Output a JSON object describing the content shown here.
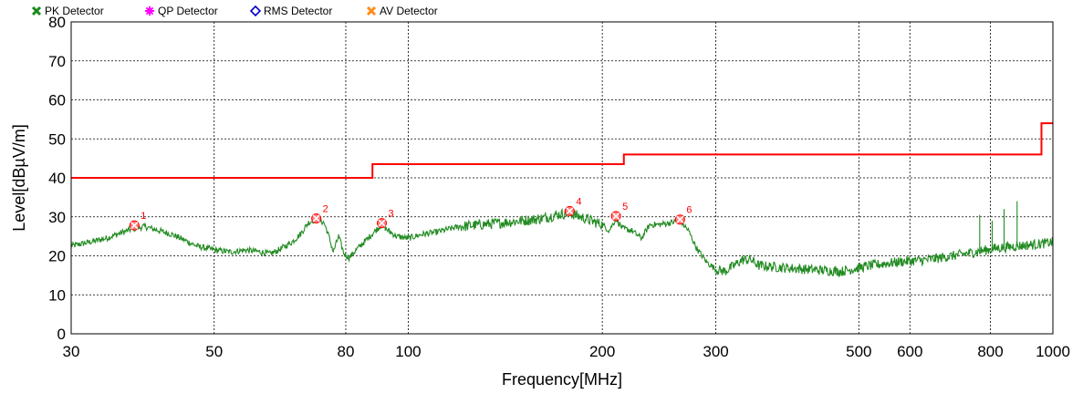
{
  "chart_data": {
    "type": "line",
    "xlabel": "Frequency[MHz]",
    "ylabel": "Level[dBµV/m]",
    "x_scale": "log",
    "xlim": [
      30,
      1000
    ],
    "ylim": [
      0,
      80
    ],
    "grid": true,
    "legend_position": "top-left",
    "x_ticks": [
      {
        "value": 30,
        "label": "30"
      },
      {
        "value": 50,
        "label": "50"
      },
      {
        "value": 80,
        "label": "80"
      },
      {
        "value": 100,
        "label": "100"
      },
      {
        "value": 200,
        "label": "200"
      },
      {
        "value": 300,
        "label": "300"
      },
      {
        "value": 500,
        "label": "500"
      },
      {
        "value": 600,
        "label": "600"
      },
      {
        "value": 800,
        "label": "800"
      },
      {
        "value": 1000,
        "label": "1000"
      }
    ],
    "y_ticks": [
      0,
      10,
      20,
      30,
      40,
      50,
      60,
      70,
      80
    ],
    "legend": [
      {
        "name": "PK Detector",
        "color": "#1a8a1a",
        "marker": "x-icon"
      },
      {
        "name": "QP Detector",
        "color": "#ff00ff",
        "marker": "star-icon"
      },
      {
        "name": "RMS Detector",
        "color": "#0000cc",
        "marker": "diamond-icon"
      },
      {
        "name": "AV Detector",
        "color": "#ff8c1a",
        "marker": "x-icon"
      }
    ],
    "limit_line": {
      "color": "#ff0000",
      "points": [
        [
          30,
          40
        ],
        [
          88,
          40
        ],
        [
          88,
          43.5
        ],
        [
          216,
          43.5
        ],
        [
          216,
          46
        ],
        [
          960,
          46
        ],
        [
          960,
          54
        ],
        [
          1000,
          54
        ]
      ]
    },
    "pk_trace": {
      "color": "#228b22",
      "points": [
        [
          30,
          22.5
        ],
        [
          32,
          23.5
        ],
        [
          34,
          24.5
        ],
        [
          36,
          26
        ],
        [
          37.5,
          27
        ],
        [
          39,
          27.5
        ],
        [
          41,
          26.5
        ],
        [
          43,
          25.5
        ],
        [
          45,
          24
        ],
        [
          47,
          22.5
        ],
        [
          50,
          21.5
        ],
        [
          53,
          21
        ],
        [
          56,
          21.5
        ],
        [
          59,
          21
        ],
        [
          61,
          20.5
        ],
        [
          63,
          21.5
        ],
        [
          66,
          23.5
        ],
        [
          68,
          25.5
        ],
        [
          70,
          28.5
        ],
        [
          72,
          29.5
        ],
        [
          74,
          28.5
        ],
        [
          75,
          26
        ],
        [
          76.5,
          21
        ],
        [
          78,
          25
        ],
        [
          79.5,
          20.5
        ],
        [
          81,
          19.5
        ],
        [
          83,
          21.5
        ],
        [
          86,
          24
        ],
        [
          89,
          26.5
        ],
        [
          91,
          28
        ],
        [
          93,
          26.5
        ],
        [
          96,
          25
        ],
        [
          100,
          24.5
        ],
        [
          105,
          25.5
        ],
        [
          110,
          26
        ],
        [
          120,
          27.5
        ],
        [
          130,
          28
        ],
        [
          140,
          28.5
        ],
        [
          150,
          29
        ],
        [
          160,
          29.5
        ],
        [
          170,
          30.5
        ],
        [
          178,
          31
        ],
        [
          185,
          30
        ],
        [
          192,
          29
        ],
        [
          200,
          28
        ],
        [
          205,
          26.5
        ],
        [
          210,
          29.5
        ],
        [
          215,
          27
        ],
        [
          222,
          26.5
        ],
        [
          230,
          24.5
        ],
        [
          237,
          28
        ],
        [
          245,
          28
        ],
        [
          255,
          28.5
        ],
        [
          264,
          29
        ],
        [
          272,
          26.5
        ],
        [
          280,
          22
        ],
        [
          290,
          18.5
        ],
        [
          300,
          16.5
        ],
        [
          310,
          16
        ],
        [
          320,
          17.5
        ],
        [
          330,
          19
        ],
        [
          340,
          19
        ],
        [
          350,
          17.5
        ],
        [
          380,
          17
        ],
        [
          420,
          16.5
        ],
        [
          470,
          16
        ],
        [
          520,
          17.5
        ],
        [
          580,
          18.5
        ],
        [
          640,
          19
        ],
        [
          700,
          20
        ],
        [
          760,
          21
        ],
        [
          820,
          22
        ],
        [
          880,
          22.5
        ],
        [
          950,
          23
        ],
        [
          1000,
          23.5
        ]
      ],
      "spikes": [
        [
          770,
          30.5
        ],
        [
          805,
          29
        ],
        [
          840,
          32
        ],
        [
          880,
          34
        ]
      ]
    },
    "markers": [
      {
        "label": "1",
        "x": 37.6,
        "y": 27.8
      },
      {
        "label": "2",
        "x": 72.0,
        "y": 29.6
      },
      {
        "label": "3",
        "x": 91.0,
        "y": 28.4
      },
      {
        "label": "4",
        "x": 178.0,
        "y": 31.5
      },
      {
        "label": "5",
        "x": 210.0,
        "y": 30.2
      },
      {
        "label": "6",
        "x": 264.0,
        "y": 29.3
      }
    ]
  }
}
